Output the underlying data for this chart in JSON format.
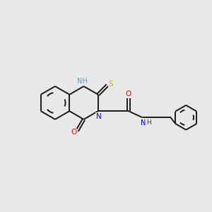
{
  "background_color": "#e8e8e8",
  "bond_color": "#1a1a1a",
  "atom_colors": {
    "N": "#0000ff",
    "O": "#ff0000",
    "S": "#bbbb00",
    "NH": "#6699aa"
  },
  "figsize": [
    3.0,
    3.0
  ],
  "dpi": 100,
  "lw": 1.4,
  "r_benz": 0.75,
  "r_pyr": 0.75,
  "r_ph": 0.58
}
